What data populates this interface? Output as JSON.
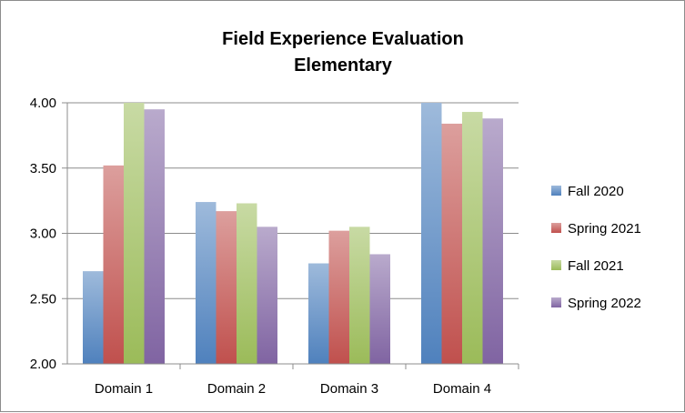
{
  "chart_data": {
    "type": "bar",
    "title": "Field Experience Evaluation",
    "subtitle": "Elementary",
    "xlabel": "",
    "ylabel": "",
    "categories": [
      "Domain 1",
      "Domain 2",
      "Domain 3",
      "Domain 4"
    ],
    "ylim": [
      2.0,
      4.0
    ],
    "yticks": [
      "2.00",
      "2.50",
      "3.00",
      "3.50",
      "4.00"
    ],
    "grid": true,
    "legend_position": "right",
    "series": [
      {
        "name": "Fall 2020",
        "color": "#4f81bd",
        "values": [
          2.71,
          3.24,
          2.77,
          4.0
        ]
      },
      {
        "name": "Spring 2021",
        "color": "#c0504d",
        "values": [
          3.52,
          3.17,
          3.02,
          3.84
        ]
      },
      {
        "name": "Fall 2021",
        "color": "#9bbb59",
        "values": [
          4.0,
          3.23,
          3.05,
          3.93
        ]
      },
      {
        "name": "Spring 2022",
        "color": "#8064a2",
        "values": [
          3.95,
          3.05,
          2.84,
          3.88
        ]
      }
    ]
  }
}
